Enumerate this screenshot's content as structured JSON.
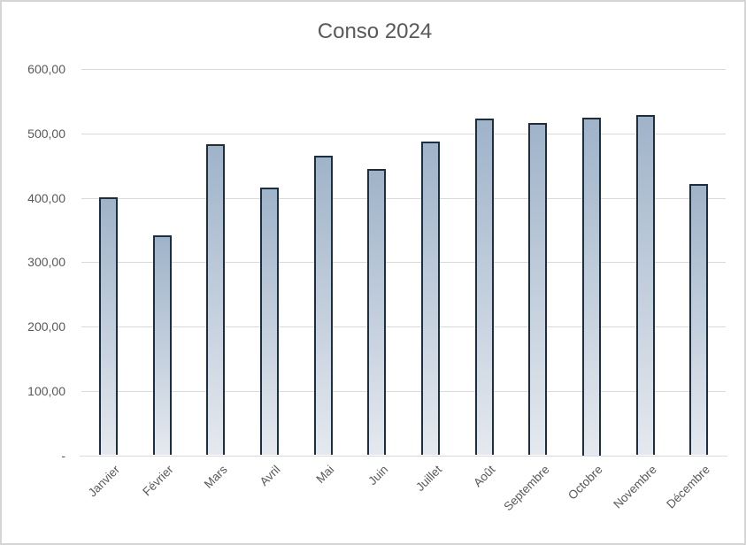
{
  "window": {
    "background": "#ffffff",
    "frame_border": "#d5d5d5"
  },
  "chart_data": {
    "type": "bar",
    "title": "Conso 2024",
    "categories": [
      "Janvier",
      "Février",
      "Mars",
      "Avril",
      "Mai",
      "Juin",
      "Juillet",
      "Août",
      "Septembre",
      "Octobre",
      "Novembre",
      "Décembre"
    ],
    "values": [
      401,
      341,
      483,
      416,
      465,
      444,
      487,
      523,
      516,
      525,
      528,
      421
    ],
    "series_name": "Conso",
    "xlabel": "",
    "ylabel": "",
    "y_axis": {
      "min": 0,
      "max": 600,
      "step": 100,
      "tick_labels": [
        "600,00",
        "500,00",
        "400,00",
        "300,00",
        "200,00",
        "100,00",
        "-"
      ]
    },
    "x_label_rotation_deg": 45,
    "grid": true,
    "legend": "none",
    "colors": {
      "bar_fill_top": "#9fb3c9",
      "bar_fill_bottom": "#e5e9ef",
      "bar_border": "#1a2f42",
      "gridline": "#d9d9d9",
      "axis_line": "#d9d9d9",
      "tick_text": "#595959",
      "title_text": "#595959"
    }
  }
}
